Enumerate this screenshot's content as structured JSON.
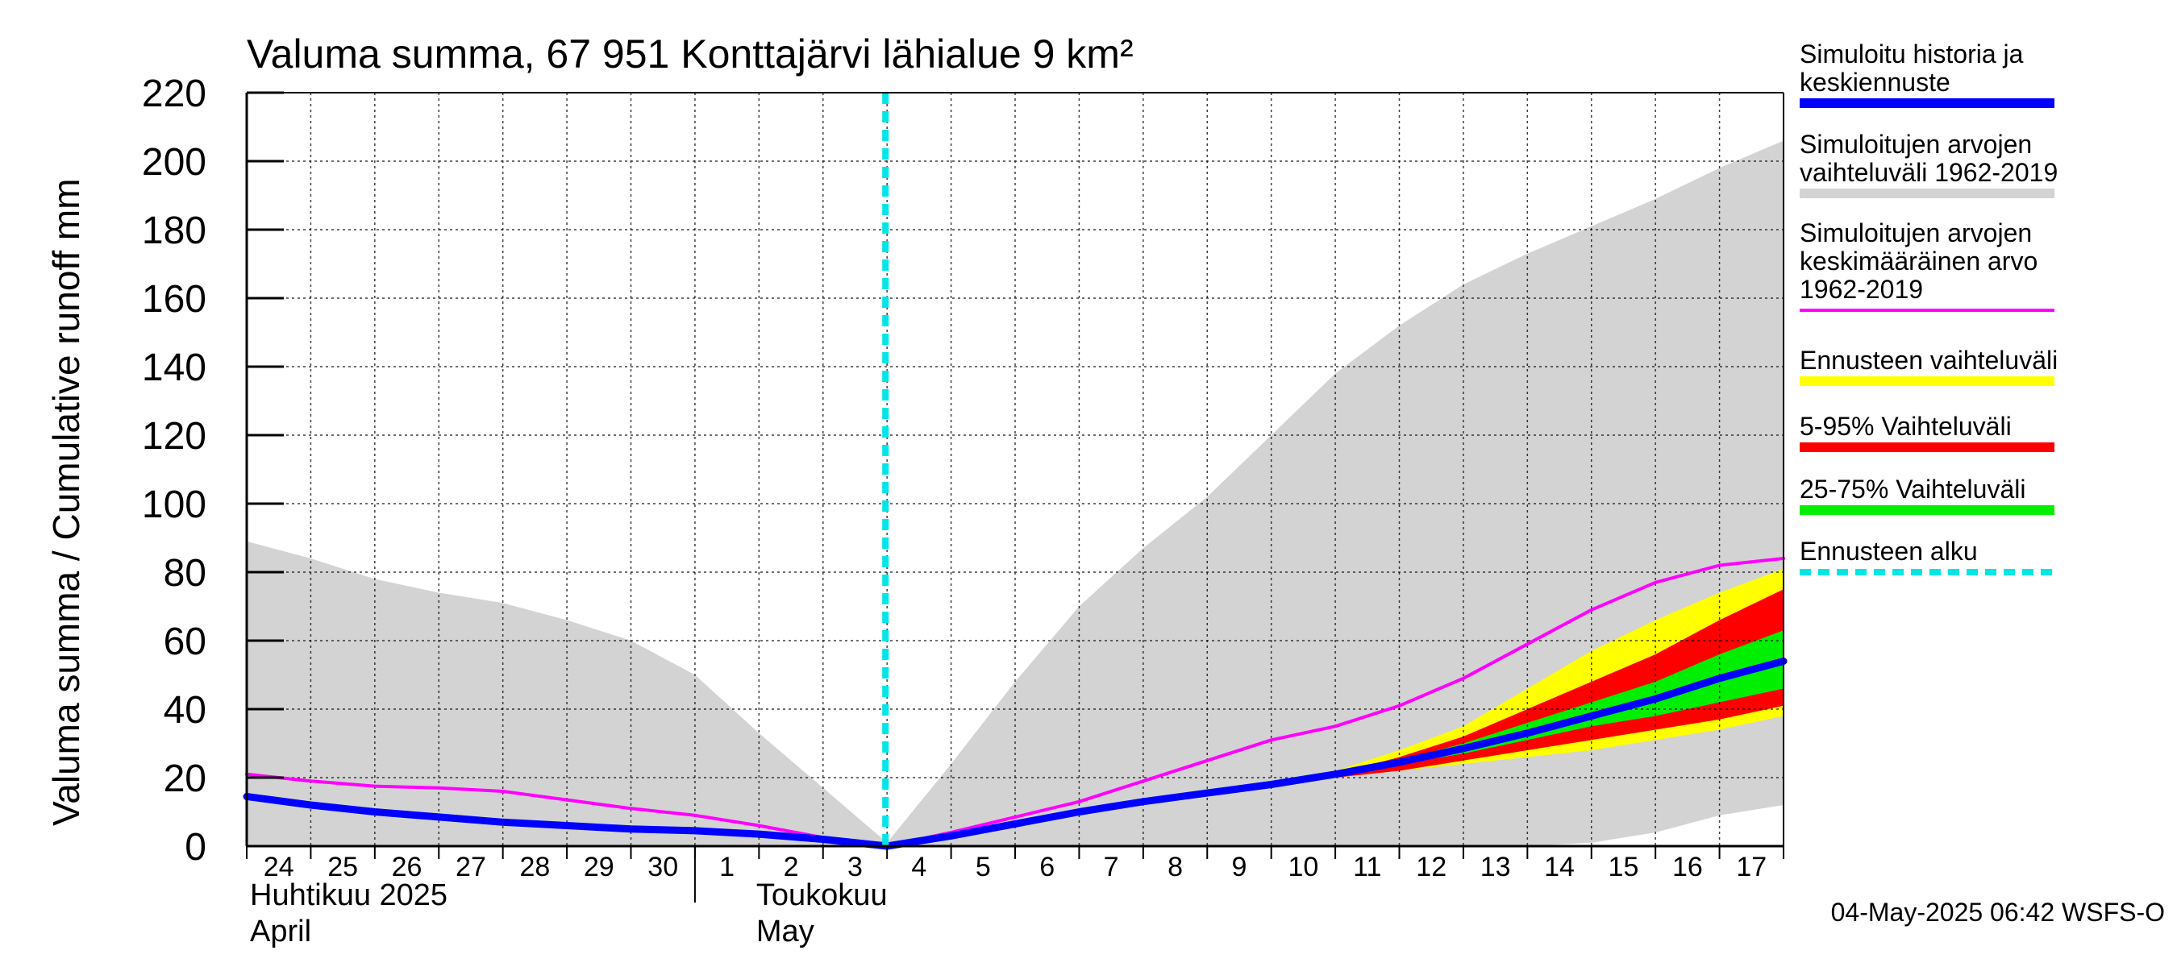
{
  "chart_data": {
    "type": "area",
    "title": "Valuma summa, 67 951 Konttajärvi lähialue 9 km²",
    "ylabel": "Valuma summa / Cumulative runoff    mm",
    "ylim": [
      0,
      220
    ],
    "yticks": [
      0,
      20,
      40,
      60,
      80,
      100,
      120,
      140,
      160,
      180,
      200,
      220
    ],
    "grid": true,
    "x_start": "2025-04-24",
    "x_end": "2025-05-18",
    "day_labels": [
      "24",
      "25",
      "26",
      "27",
      "28",
      "29",
      "30",
      "1",
      "2",
      "3",
      "4",
      "5",
      "6",
      "7",
      "8",
      "9",
      "10",
      "11",
      "12",
      "13",
      "14",
      "15",
      "16",
      "17"
    ],
    "months": [
      {
        "name_fi": "Huhtikuu  2025",
        "name_en": "April",
        "start": "2025-04-24"
      },
      {
        "name_fi": "Toukokuu",
        "name_en": "May",
        "start": "2025-05-01"
      }
    ],
    "forecast_start": "2025-05-04",
    "x": [
      "2025-04-24",
      "2025-04-25",
      "2025-04-26",
      "2025-04-27",
      "2025-04-28",
      "2025-04-29",
      "2025-04-30",
      "2025-05-01",
      "2025-05-02",
      "2025-05-03",
      "2025-05-04",
      "2025-05-05",
      "2025-05-06",
      "2025-05-07",
      "2025-05-08",
      "2025-05-09",
      "2025-05-10",
      "2025-05-11",
      "2025-05-12",
      "2025-05-13",
      "2025-05-14",
      "2025-05-15",
      "2025-05-16",
      "2025-05-17",
      "2025-05-18"
    ],
    "series": [
      {
        "name": "Simuloitujen arvojen vaihteluväli 1962-2019",
        "kind": "band",
        "color": "#d3d3d3",
        "low": [
          0,
          0,
          0,
          0,
          0,
          0,
          0,
          0,
          0,
          0,
          0,
          0,
          0,
          0,
          0,
          0,
          0,
          0,
          0,
          0,
          0,
          1,
          4,
          9,
          12
        ],
        "high": [
          89,
          84,
          78,
          74,
          71,
          66,
          60,
          50,
          33,
          17,
          1,
          24,
          48,
          70,
          87,
          102,
          120,
          138,
          152,
          164,
          173,
          181,
          189,
          198,
          206
        ]
      },
      {
        "name": "Ennusteen vaihteluväli",
        "kind": "band",
        "color": "#ffff00",
        "low": [
          null,
          null,
          null,
          null,
          null,
          null,
          null,
          null,
          null,
          null,
          null,
          null,
          null,
          null,
          null,
          null,
          18,
          20,
          22,
          24,
          26,
          28,
          31,
          34,
          38
        ],
        "high": [
          null,
          null,
          null,
          null,
          null,
          null,
          null,
          null,
          null,
          null,
          null,
          null,
          null,
          null,
          null,
          null,
          18,
          22,
          28,
          35,
          46,
          57,
          66,
          74,
          81
        ]
      },
      {
        "name": "5-95% Vaihteluväli",
        "kind": "band",
        "color": "#ff0000",
        "low": [
          null,
          null,
          null,
          null,
          null,
          null,
          null,
          null,
          null,
          null,
          null,
          null,
          null,
          null,
          null,
          null,
          18,
          20,
          22,
          25,
          28,
          31,
          34,
          37,
          41
        ],
        "high": [
          null,
          null,
          null,
          null,
          null,
          null,
          null,
          null,
          null,
          null,
          null,
          null,
          null,
          null,
          null,
          null,
          18,
          21,
          26,
          32,
          40,
          48,
          56,
          66,
          75
        ]
      },
      {
        "name": "25-75% Vaihteluväli",
        "kind": "band",
        "color": "#00ee00",
        "low": [
          null,
          null,
          null,
          null,
          null,
          null,
          null,
          null,
          null,
          null,
          null,
          null,
          null,
          null,
          null,
          null,
          18,
          21,
          24,
          27,
          31,
          35,
          38,
          42,
          46
        ],
        "high": [
          null,
          null,
          null,
          null,
          null,
          null,
          null,
          null,
          null,
          null,
          null,
          null,
          null,
          null,
          null,
          null,
          18,
          21,
          25,
          30,
          36,
          42,
          48,
          56,
          63
        ]
      },
      {
        "name": "Simuloitujen arvojen keskimääräinen arvo 1962-2019",
        "kind": "line",
        "color": "#ff00ff",
        "values": [
          21,
          19,
          17.5,
          17,
          16,
          13.5,
          11,
          9,
          6,
          2.5,
          0,
          4,
          8.5,
          13,
          19,
          25,
          31,
          35,
          41,
          49,
          59,
          69,
          77,
          82,
          84
        ]
      },
      {
        "name": "Simuloitu historia ja keskiennuste",
        "kind": "line",
        "color": "#0000ff",
        "values": [
          14.5,
          12,
          10,
          8.5,
          7,
          6,
          5,
          4.5,
          3.5,
          2,
          0,
          3,
          6.5,
          10,
          13,
          15.5,
          18,
          21,
          24.5,
          28.5,
          33,
          38,
          43,
          49,
          54
        ]
      }
    ]
  },
  "legend": {
    "items": [
      {
        "label_lines": [
          "Simuloitu historia ja",
          "keskiennuste"
        ],
        "color": "#0000ff",
        "style": "line"
      },
      {
        "label_lines": [
          "Simuloitujen arvojen",
          "vaihteluväli 1962-2019"
        ],
        "color": "#d3d3d3",
        "style": "band"
      },
      {
        "label_lines": [
          "Simuloitujen arvojen",
          "keskimääräinen arvo",
          "   1962-2019"
        ],
        "color": "#ff00ff",
        "style": "thin"
      },
      {
        "label_lines": [
          "Ennusteen vaihteluväli"
        ],
        "color": "#ffff00",
        "style": "band"
      },
      {
        "label_lines": [
          "5-95% Vaihteluväli"
        ],
        "color": "#ff0000",
        "style": "band"
      },
      {
        "label_lines": [
          "25-75% Vaihteluväli"
        ],
        "color": "#00ee00",
        "style": "band"
      },
      {
        "label_lines": [
          "Ennusteen alku"
        ],
        "color": "#00e5e5",
        "style": "dashed"
      }
    ]
  },
  "footer": "04-May-2025 06:42 WSFS-O"
}
